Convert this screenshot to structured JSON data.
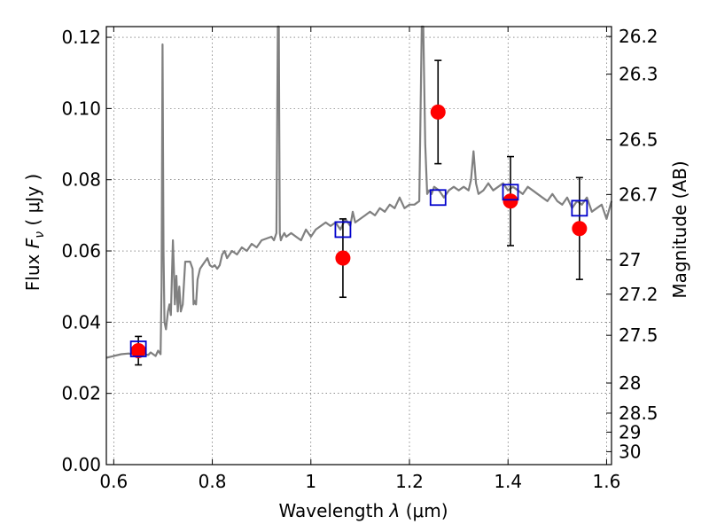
{
  "chart_data": {
    "type": "scatter",
    "xlabel_text": "Wavelength",
    "xlabel_symbol": "λ",
    "xlabel_unit": "(μm)",
    "ylabel_text": "Flux",
    "ylabel_symbol": "F",
    "ylabel_subscript": "ν",
    "ylabel_unit": "( μJy )",
    "y2label": "Magnitude (AB)",
    "xlim": [
      0.585,
      1.61
    ],
    "ylim": [
      0.0,
      0.123
    ],
    "x_ticks": [
      0.6,
      0.8,
      1.0,
      1.2,
      1.4,
      1.6
    ],
    "x_tick_labels": [
      "0.6",
      "0.8",
      "1",
      "1.2",
      "1.4",
      "1.6"
    ],
    "y_ticks": [
      0.0,
      0.02,
      0.04,
      0.06,
      0.08,
      0.1,
      0.12
    ],
    "y_tick_labels": [
      "0.00",
      "0.02",
      "0.04",
      "0.06",
      "0.08",
      "0.10",
      "0.12"
    ],
    "y2_tick_labels": [
      "26.2",
      "26.3",
      "26.5",
      "26.7",
      "27",
      "27.2",
      "27.5",
      "28",
      "28.5",
      "29",
      "30"
    ],
    "y2_tick_magnitudes": [
      26.2,
      26.3,
      26.5,
      26.7,
      27.0,
      27.2,
      27.5,
      28.0,
      28.5,
      29.0,
      30.0
    ],
    "grid": true,
    "colors": {
      "spectrum": "#808080",
      "observed": "#ff0000",
      "model": "#0000cc",
      "errorbar": "#000000",
      "axes": "#000000"
    },
    "series": [
      {
        "kind": "spectrum",
        "x": [
          0.585,
          0.6,
          0.615,
          0.63,
          0.64,
          0.65,
          0.66,
          0.67,
          0.675,
          0.68,
          0.685,
          0.69,
          0.695,
          0.697,
          0.699,
          0.701,
          0.703,
          0.706,
          0.71,
          0.713,
          0.716,
          0.72,
          0.722,
          0.724,
          0.727,
          0.73,
          0.733,
          0.736,
          0.74,
          0.745,
          0.75,
          0.755,
          0.76,
          0.762,
          0.764,
          0.767,
          0.77,
          0.775,
          0.78,
          0.785,
          0.79,
          0.795,
          0.8,
          0.805,
          0.81,
          0.815,
          0.82,
          0.825,
          0.83,
          0.84,
          0.85,
          0.86,
          0.87,
          0.88,
          0.89,
          0.9,
          0.91,
          0.92,
          0.925,
          0.93,
          0.933,
          0.935,
          0.937,
          0.939,
          0.942,
          0.946,
          0.95,
          0.96,
          0.97,
          0.98,
          0.99,
          1.0,
          1.01,
          1.02,
          1.03,
          1.04,
          1.05,
          1.06,
          1.07,
          1.08,
          1.085,
          1.09,
          1.1,
          1.11,
          1.12,
          1.13,
          1.14,
          1.15,
          1.16,
          1.17,
          1.18,
          1.19,
          1.2,
          1.21,
          1.22,
          1.225,
          1.228,
          1.232,
          1.236,
          1.24,
          1.245,
          1.25,
          1.26,
          1.27,
          1.28,
          1.29,
          1.3,
          1.31,
          1.32,
          1.325,
          1.33,
          1.335,
          1.34,
          1.35,
          1.36,
          1.37,
          1.38,
          1.39,
          1.4,
          1.41,
          1.42,
          1.43,
          1.44,
          1.45,
          1.46,
          1.47,
          1.48,
          1.49,
          1.5,
          1.51,
          1.52,
          1.53,
          1.54,
          1.55,
          1.56,
          1.57,
          1.58,
          1.59,
          1.6,
          1.61
        ],
        "y": [
          0.03,
          0.0305,
          0.031,
          0.0312,
          0.031,
          0.0305,
          0.031,
          0.0308,
          0.0315,
          0.031,
          0.0305,
          0.032,
          0.031,
          0.05,
          0.118,
          0.06,
          0.04,
          0.038,
          0.043,
          0.045,
          0.042,
          0.063,
          0.055,
          0.045,
          0.053,
          0.043,
          0.05,
          0.043,
          0.045,
          0.057,
          0.057,
          0.057,
          0.055,
          0.045,
          0.046,
          0.045,
          0.052,
          0.055,
          0.056,
          0.057,
          0.058,
          0.056,
          0.0555,
          0.056,
          0.055,
          0.056,
          0.059,
          0.06,
          0.058,
          0.06,
          0.059,
          0.061,
          0.06,
          0.062,
          0.061,
          0.063,
          0.0635,
          0.064,
          0.063,
          0.065,
          0.123,
          0.123,
          0.065,
          0.063,
          0.064,
          0.065,
          0.064,
          0.065,
          0.064,
          0.063,
          0.066,
          0.064,
          0.066,
          0.067,
          0.068,
          0.067,
          0.068,
          0.066,
          0.069,
          0.067,
          0.071,
          0.068,
          0.069,
          0.07,
          0.071,
          0.07,
          0.072,
          0.071,
          0.073,
          0.072,
          0.075,
          0.072,
          0.073,
          0.073,
          0.074,
          0.123,
          0.123,
          0.09,
          0.076,
          0.077,
          0.076,
          0.078,
          0.077,
          0.075,
          0.077,
          0.078,
          0.077,
          0.078,
          0.077,
          0.08,
          0.088,
          0.079,
          0.076,
          0.077,
          0.079,
          0.077,
          0.078,
          0.079,
          0.077,
          0.078,
          0.077,
          0.076,
          0.078,
          0.077,
          0.076,
          0.075,
          0.074,
          0.076,
          0.074,
          0.073,
          0.075,
          0.072,
          0.074,
          0.073,
          0.075,
          0.071,
          0.072,
          0.073,
          0.069,
          0.074
        ]
      },
      {
        "kind": "observed",
        "x": [
          0.65,
          1.065,
          1.258,
          1.405,
          1.545
        ],
        "y": [
          0.032,
          0.058,
          0.099,
          0.074,
          0.0663
        ],
        "yerr_low": [
          0.004,
          0.011,
          0.0145,
          0.0125,
          0.0143
        ],
        "yerr_high": [
          0.004,
          0.011,
          0.0145,
          0.0125,
          0.0143
        ]
      },
      {
        "kind": "model",
        "x": [
          0.65,
          1.065,
          1.258,
          1.405,
          1.545
        ],
        "y": [
          0.0325,
          0.066,
          0.075,
          0.0765,
          0.072
        ]
      }
    ]
  }
}
